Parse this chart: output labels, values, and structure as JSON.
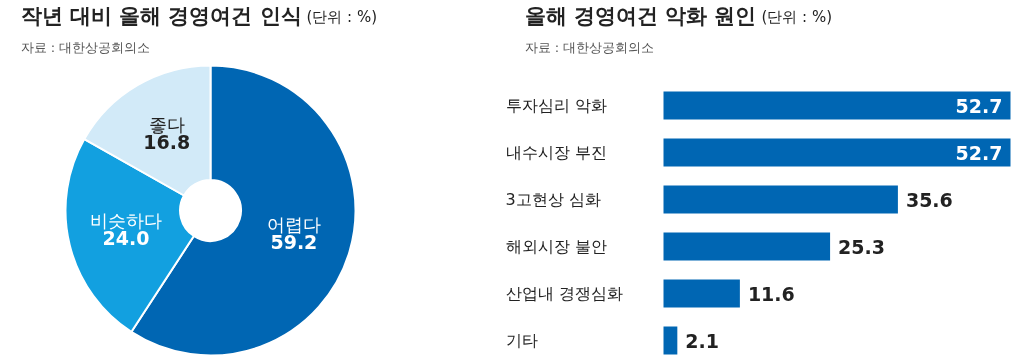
{
  "chart_data": [
    {
      "type": "donut",
      "title": "작년 대비 올해 경영여건 인식",
      "subtitle": "(단위 : %)",
      "annotations": [
        "자료 : 대한상공회의소"
      ],
      "categories": [
        "어렵다",
        "비슷하다",
        "좋다"
      ],
      "values": [
        59.2,
        24.0,
        16.8
      ],
      "colors": [
        "#0066b3",
        "#12a0e0",
        "#d2eaf8"
      ],
      "value_labels": [
        "59.2",
        "24.0",
        "16.8"
      ]
    },
    {
      "type": "bar",
      "orientation": "horizontal",
      "title": "올해 경영여건 악화 원인",
      "subtitle": "(단위 : %)",
      "annotations": [
        "자료 : 대한상공회의소"
      ],
      "categories": [
        "투자심리 악화",
        "내수시장 부진",
        "3고현상 심화",
        "해외시장 불안",
        "산업내 경쟁심화",
        "기타"
      ],
      "values": [
        52.7,
        52.7,
        35.6,
        25.3,
        11.6,
        2.1
      ],
      "color": "#0066b3",
      "data_labels": true
    }
  ]
}
